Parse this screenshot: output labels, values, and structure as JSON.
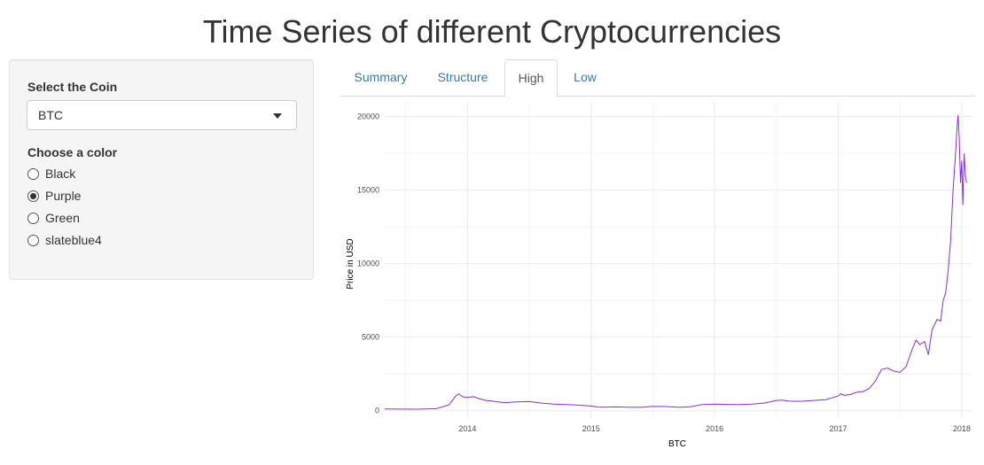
{
  "header": {
    "title": "Time Series of different Cryptocurrencies"
  },
  "sidebar": {
    "coin_label": "Select the Coin",
    "coin_selected": "BTC",
    "color_label": "Choose a color",
    "color_options": [
      {
        "label": "Black",
        "checked": false
      },
      {
        "label": "Purple",
        "checked": true
      },
      {
        "label": "Green",
        "checked": false
      },
      {
        "label": "slateblue4",
        "checked": false
      }
    ]
  },
  "tabs": [
    {
      "label": "Summary",
      "active": false
    },
    {
      "label": "Structure",
      "active": false
    },
    {
      "label": "High",
      "active": true
    },
    {
      "label": "Low",
      "active": false
    }
  ],
  "colors": {
    "line": "#8a2be2",
    "link": "#337ab7",
    "grid": "#ebebeb"
  },
  "chart_data": {
    "type": "line",
    "title": "",
    "xlabel": "BTC",
    "ylabel": "Price in USD",
    "xlim": [
      2013.33,
      2018.08
    ],
    "ylim": [
      -500,
      21000
    ],
    "x_ticks": [
      2014,
      2015,
      2016,
      2017,
      2018
    ],
    "x_tick_labels": [
      "2014",
      "2015",
      "2016",
      "2017",
      "2018"
    ],
    "y_ticks": [
      0,
      5000,
      10000,
      15000,
      20000
    ],
    "y_tick_labels": [
      "0",
      "5000",
      "10000",
      "15000",
      "20000"
    ],
    "grid": true,
    "series": [
      {
        "color": "#8a2be2",
        "x": [
          2013.33,
          2013.45,
          2013.6,
          2013.75,
          2013.85,
          2013.9,
          2013.93,
          2013.95,
          2013.98,
          2014.05,
          2014.1,
          2014.15,
          2014.2,
          2014.3,
          2014.4,
          2014.5,
          2014.6,
          2014.7,
          2014.8,
          2014.9,
          2015.0,
          2015.05,
          2015.1,
          2015.2,
          2015.3,
          2015.4,
          2015.5,
          2015.6,
          2015.7,
          2015.8,
          2015.9,
          2016.0,
          2016.1,
          2016.2,
          2016.3,
          2016.4,
          2016.5,
          2016.55,
          2016.6,
          2016.7,
          2016.8,
          2016.9,
          2017.0,
          2017.02,
          2017.05,
          2017.1,
          2017.15,
          2017.2,
          2017.25,
          2017.3,
          2017.35,
          2017.4,
          2017.45,
          2017.5,
          2017.55,
          2017.6,
          2017.63,
          2017.66,
          2017.7,
          2017.73,
          2017.76,
          2017.8,
          2017.83,
          2017.85,
          2017.87,
          2017.89,
          2017.91,
          2017.93,
          2017.95,
          2017.96,
          2017.97,
          2017.98,
          2017.99,
          2018.0,
          2018.01,
          2018.02,
          2018.03,
          2018.04
        ],
        "values": [
          120,
          110,
          100,
          140,
          400,
          950,
          1150,
          1000,
          900,
          950,
          800,
          700,
          650,
          550,
          600,
          620,
          520,
          450,
          420,
          380,
          320,
          250,
          240,
          260,
          240,
          230,
          290,
          280,
          240,
          260,
          420,
          450,
          430,
          420,
          450,
          520,
          700,
          720,
          650,
          640,
          700,
          750,
          1000,
          1150,
          1050,
          1100,
          1250,
          1300,
          1500,
          2000,
          2800,
          2900,
          2700,
          2600,
          3000,
          4200,
          4800,
          4500,
          4700,
          3800,
          5500,
          6200,
          6100,
          7500,
          8000,
          9500,
          11500,
          15000,
          17500,
          19000,
          20100,
          18500,
          15500,
          17000,
          14000,
          17500,
          16000,
          15500
        ]
      }
    ]
  }
}
